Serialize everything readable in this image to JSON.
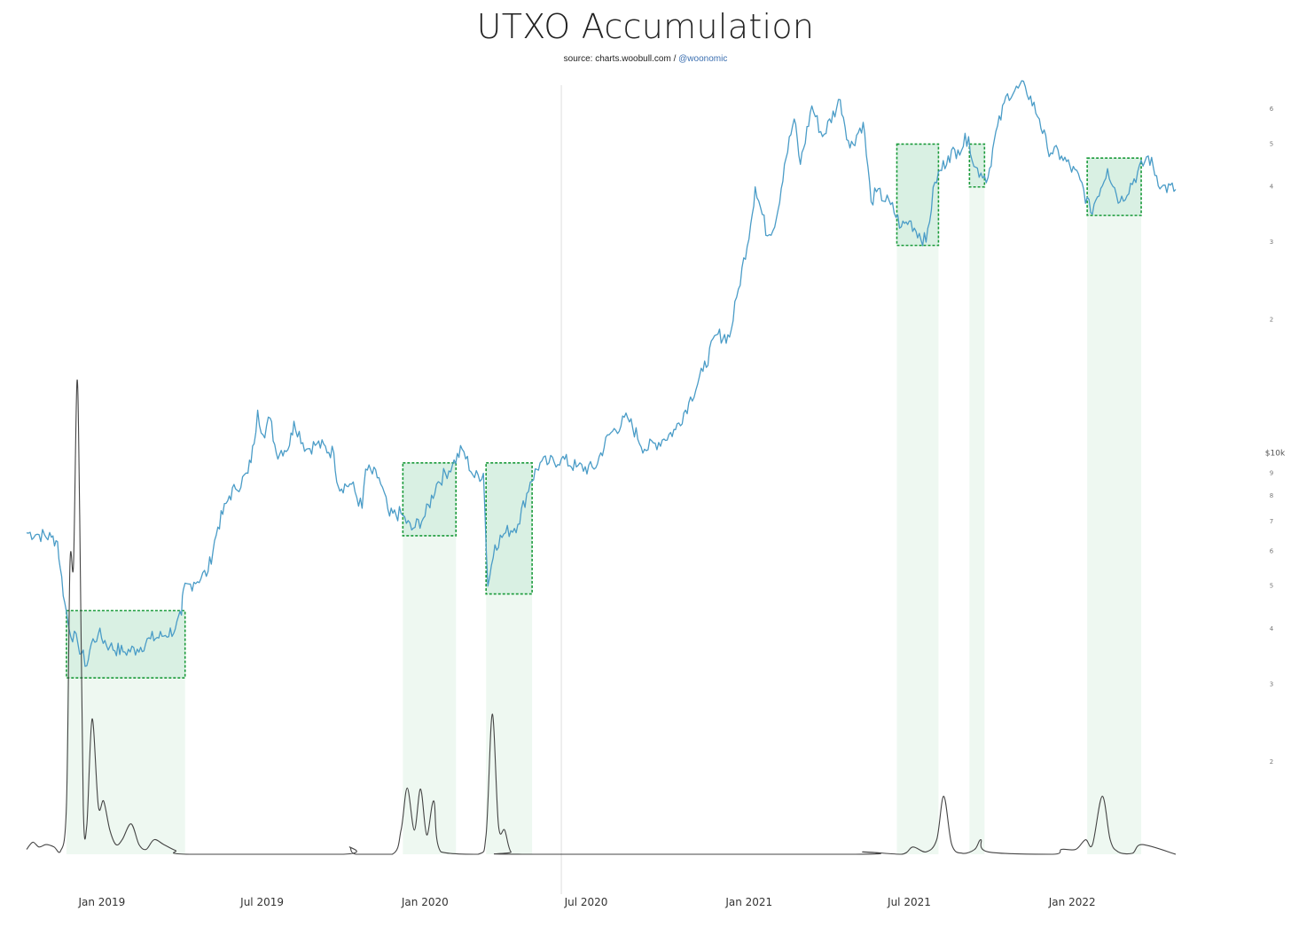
{
  "title": "UTXO Accumulation",
  "source": {
    "prefix": "source: charts.woobull.com /",
    "handle": "@woonomic"
  },
  "colors": {
    "price": "#4a9cc7",
    "indicator": "#444444",
    "zone_fill": "#d9f0e3",
    "zone_border": "#1a9a3a",
    "zone_band": "#eef8f1",
    "divider": "#dddddd"
  },
  "chart_data": {
    "type": "line",
    "title": "UTXO Accumulation",
    "yscale": "log",
    "ylabel_unit": "$10k",
    "y_ticks": [
      {
        "label": "2",
        "value": 20000
      },
      {
        "label": "3",
        "value": 30000
      },
      {
        "label": "4",
        "value": 40000
      },
      {
        "label": "5",
        "value": 50000
      },
      {
        "label": "6",
        "value": 60000
      },
      {
        "label": "2",
        "value": 2000
      },
      {
        "label": "3",
        "value": 3000
      },
      {
        "label": "4",
        "value": 4000
      },
      {
        "label": "5",
        "value": 5000
      },
      {
        "label": "6",
        "value": 6000
      },
      {
        "label": "7",
        "value": 7000
      },
      {
        "label": "8",
        "value": 8000
      },
      {
        "label": "9",
        "value": 9000
      }
    ],
    "x_ticks": [
      {
        "label": "Jan 2019",
        "date": "2019-01-01"
      },
      {
        "label": "Jul 2019",
        "date": "2019-07-01"
      },
      {
        "label": "Jan 2020",
        "date": "2020-01-01"
      },
      {
        "label": "Jul 2020",
        "date": "2020-07-01"
      },
      {
        "label": "Jan 2021",
        "date": "2021-01-01"
      },
      {
        "label": "Jul 2021",
        "date": "2021-07-01"
      },
      {
        "label": "Jan 2022",
        "date": "2022-01-01"
      }
    ],
    "xlim": [
      "2018-10-08",
      "2022-04-28"
    ],
    "divider_date": "2020-06-03",
    "series": [
      {
        "kind": "price",
        "points": [
          [
            "2018-10-08",
            6600
          ],
          [
            "2018-10-20",
            6550
          ],
          [
            "2018-11-05",
            6450
          ],
          [
            "2018-11-12",
            6300
          ],
          [
            "2018-11-15",
            5500
          ],
          [
            "2018-11-20",
            4600
          ],
          [
            "2018-11-25",
            4000
          ],
          [
            "2018-12-05",
            3700
          ],
          [
            "2018-12-15",
            3300
          ],
          [
            "2018-12-20",
            3700
          ],
          [
            "2018-12-28",
            3900
          ],
          [
            "2019-01-10",
            3650
          ],
          [
            "2019-01-25",
            3550
          ],
          [
            "2019-02-10",
            3600
          ],
          [
            "2019-02-25",
            3800
          ],
          [
            "2019-03-10",
            3850
          ],
          [
            "2019-03-25",
            4000
          ],
          [
            "2019-04-01",
            4300
          ],
          [
            "2019-04-03",
            4900
          ],
          [
            "2019-04-15",
            5100
          ],
          [
            "2019-05-01",
            5400
          ],
          [
            "2019-05-12",
            6800
          ],
          [
            "2019-05-25",
            8000
          ],
          [
            "2019-06-01",
            8300
          ],
          [
            "2019-06-15",
            9000
          ],
          [
            "2019-06-22",
            10500
          ],
          [
            "2019-06-26",
            12500
          ],
          [
            "2019-07-02",
            11000
          ],
          [
            "2019-07-10",
            12000
          ],
          [
            "2019-07-17",
            10000
          ],
          [
            "2019-08-01",
            10400
          ],
          [
            "2019-08-06",
            11800
          ],
          [
            "2019-08-20",
            10200
          ],
          [
            "2019-09-01",
            10500
          ],
          [
            "2019-09-20",
            10000
          ],
          [
            "2019-09-25",
            8400
          ],
          [
            "2019-10-10",
            8500
          ],
          [
            "2019-10-22",
            7500
          ],
          [
            "2019-10-26",
            9200
          ],
          [
            "2019-11-10",
            8800
          ],
          [
            "2019-11-22",
            7200
          ],
          [
            "2019-12-05",
            7300
          ],
          [
            "2019-12-17",
            6700
          ],
          [
            "2020-01-01",
            7200
          ],
          [
            "2020-01-14",
            8500
          ],
          [
            "2020-02-01",
            9400
          ],
          [
            "2020-02-12",
            10200
          ],
          [
            "2020-02-26",
            8800
          ],
          [
            "2020-03-07",
            9000
          ],
          [
            "2020-03-12",
            5000
          ],
          [
            "2020-03-20",
            6200
          ],
          [
            "2020-04-01",
            6600
          ],
          [
            "2020-04-15",
            6900
          ],
          [
            "2020-04-29",
            8600
          ],
          [
            "2020-05-10",
            9500
          ],
          [
            "2020-05-20",
            9500
          ],
          [
            "2020-06-03",
            9700
          ],
          [
            "2020-06-20",
            9300
          ],
          [
            "2020-07-10",
            9200
          ],
          [
            "2020-07-27",
            11000
          ],
          [
            "2020-08-17",
            12000
          ],
          [
            "2020-09-05",
            10200
          ],
          [
            "2020-09-25",
            10700
          ],
          [
            "2020-10-10",
            11300
          ],
          [
            "2020-10-25",
            13000
          ],
          [
            "2020-11-10",
            15300
          ],
          [
            "2020-11-25",
            18500
          ],
          [
            "2020-12-10",
            18300
          ],
          [
            "2020-12-20",
            23500
          ],
          [
            "2021-01-03",
            33000
          ],
          [
            "2021-01-08",
            40000
          ],
          [
            "2021-01-22",
            31000
          ],
          [
            "2021-02-01",
            34000
          ],
          [
            "2021-02-10",
            45000
          ],
          [
            "2021-02-21",
            57000
          ],
          [
            "2021-02-28",
            45000
          ],
          [
            "2021-03-13",
            61000
          ],
          [
            "2021-03-25",
            52000
          ],
          [
            "2021-04-14",
            63000
          ],
          [
            "2021-04-25",
            49000
          ],
          [
            "2021-05-10",
            56000
          ],
          [
            "2021-05-19",
            37000
          ],
          [
            "2021-05-25",
            39000
          ],
          [
            "2021-06-10",
            36500
          ],
          [
            "2021-06-22",
            32500
          ],
          [
            "2021-07-01",
            33500
          ],
          [
            "2021-07-20",
            30000
          ],
          [
            "2021-07-30",
            41000
          ],
          [
            "2021-08-14",
            47000
          ],
          [
            "2021-08-25",
            48500
          ],
          [
            "2021-09-06",
            52000
          ],
          [
            "2021-09-12",
            44500
          ],
          [
            "2021-09-20",
            43000
          ],
          [
            "2021-09-28",
            42000
          ],
          [
            "2021-10-05",
            51000
          ],
          [
            "2021-10-20",
            65000
          ],
          [
            "2021-11-09",
            67500
          ],
          [
            "2021-11-25",
            57000
          ],
          [
            "2021-12-04",
            49000
          ],
          [
            "2021-12-20",
            47000
          ],
          [
            "2022-01-10",
            41500
          ],
          [
            "2022-01-22",
            35000
          ],
          [
            "2022-02-10",
            44000
          ],
          [
            "2022-02-24",
            37000
          ],
          [
            "2022-03-28",
            47000
          ],
          [
            "2022-04-12",
            40000
          ],
          [
            "2022-04-28",
            39500
          ]
        ]
      },
      {
        "kind": "indicator",
        "peak_scale": 1.0,
        "points": [
          [
            "2018-10-08",
            0.01
          ],
          [
            "2018-10-15",
            0.025
          ],
          [
            "2018-10-22",
            0.015
          ],
          [
            "2018-10-30",
            0.02
          ],
          [
            "2018-11-08",
            0.015
          ],
          [
            "2018-11-15",
            0.005
          ],
          [
            "2018-11-22",
            0.1
          ],
          [
            "2018-11-26",
            0.6
          ],
          [
            "2018-11-30",
            0.6
          ],
          [
            "2018-12-04",
            0.98
          ],
          [
            "2018-12-07",
            0.7
          ],
          [
            "2018-12-11",
            0.1
          ],
          [
            "2018-12-15",
            0.06
          ],
          [
            "2018-12-21",
            0.28
          ],
          [
            "2018-12-28",
            0.1
          ],
          [
            "2019-01-03",
            0.11
          ],
          [
            "2019-01-10",
            0.05
          ],
          [
            "2019-01-17",
            0.02
          ],
          [
            "2019-01-24",
            0.03
          ],
          [
            "2019-02-03",
            0.063
          ],
          [
            "2019-02-12",
            0.02
          ],
          [
            "2019-02-20",
            0.01
          ],
          [
            "2019-03-01",
            0.03
          ],
          [
            "2019-03-12",
            0.02
          ],
          [
            "2019-03-25",
            0.008
          ],
          [
            "2019-04-10",
            0.0
          ],
          [
            "2019-10-01",
            0.0
          ],
          [
            "2019-10-08",
            0.015
          ],
          [
            "2019-10-15",
            0.0
          ],
          [
            "2019-11-25",
            0.0
          ],
          [
            "2019-12-05",
            0.05
          ],
          [
            "2019-12-12",
            0.137
          ],
          [
            "2019-12-20",
            0.05
          ],
          [
            "2019-12-27",
            0.135
          ],
          [
            "2020-01-03",
            0.04
          ],
          [
            "2020-01-11",
            0.11
          ],
          [
            "2020-01-19",
            0.005
          ],
          [
            "2020-03-01",
            0.0
          ],
          [
            "2020-03-10",
            0.04
          ],
          [
            "2020-03-17",
            0.29
          ],
          [
            "2020-03-24",
            0.06
          ],
          [
            "2020-03-31",
            0.05
          ],
          [
            "2020-04-07",
            0.005
          ],
          [
            "2020-04-20",
            0.0
          ],
          [
            "2021-05-01",
            0.0
          ],
          [
            "2021-05-10",
            0.005
          ],
          [
            "2021-06-22",
            0.0
          ],
          [
            "2021-07-05",
            0.015
          ],
          [
            "2021-07-20",
            0.005
          ],
          [
            "2021-08-01",
            0.03
          ],
          [
            "2021-08-09",
            0.12
          ],
          [
            "2021-08-18",
            0.02
          ],
          [
            "2021-08-30",
            0.002
          ],
          [
            "2021-09-13",
            0.01
          ],
          [
            "2021-09-20",
            0.03
          ],
          [
            "2021-09-28",
            0.005
          ],
          [
            "2021-12-10",
            0.0
          ],
          [
            "2021-12-20",
            0.01
          ],
          [
            "2022-01-05",
            0.01
          ],
          [
            "2022-01-16",
            0.03
          ],
          [
            "2022-01-24",
            0.02
          ],
          [
            "2022-02-04",
            0.12
          ],
          [
            "2022-02-13",
            0.03
          ],
          [
            "2022-02-22",
            0.005
          ],
          [
            "2022-03-10",
            0.002
          ],
          [
            "2022-03-21",
            0.02
          ],
          [
            "2022-04-28",
            0.0
          ]
        ]
      }
    ],
    "accumulation_zones": [
      {
        "start": "2018-11-22",
        "end": "2019-04-05",
        "price_low": 3100,
        "price_high": 4400
      },
      {
        "start": "2019-12-07",
        "end": "2020-02-05",
        "price_low": 6500,
        "price_high": 9500
      },
      {
        "start": "2020-03-10",
        "end": "2020-05-01",
        "price_low": 4800,
        "price_high": 9500
      },
      {
        "start": "2021-06-17",
        "end": "2021-08-03",
        "price_low": 29500,
        "price_high": 50000
      },
      {
        "start": "2021-09-07",
        "end": "2021-09-24",
        "price_low": 40000,
        "price_high": 50000
      },
      {
        "start": "2022-01-18",
        "end": "2022-03-20",
        "price_low": 34500,
        "price_high": 46500
      }
    ]
  }
}
